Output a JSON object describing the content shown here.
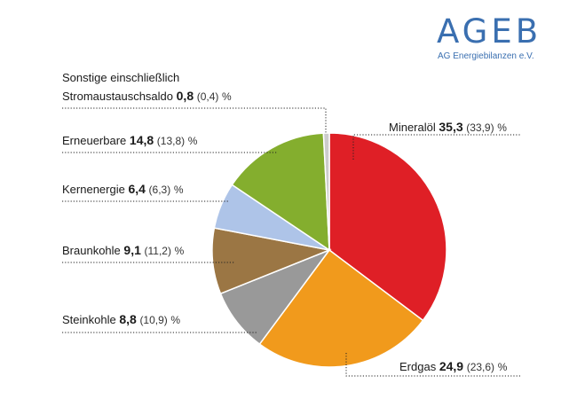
{
  "logo": {
    "name": "AGEB",
    "subtitle": "AG Energiebilanzen e.V."
  },
  "colors": {
    "mineraloel": "#df1f26",
    "erdgas": "#f19a1c",
    "steinkohle": "#999999",
    "braunkohle": "#9b7644",
    "kernenergie": "#aec4e8",
    "erneuerbare": "#84ae2e",
    "sonstige": "#cccccc"
  },
  "chart_data": {
    "type": "pie",
    "unit": "%",
    "slices": [
      {
        "label": "Mineralöl",
        "value": 35.3,
        "previous": 33.9,
        "value_text": "35,3",
        "previous_text": "(33,9)",
        "color_key": "mineraloel"
      },
      {
        "label": "Erdgas",
        "value": 24.9,
        "previous": 23.6,
        "value_text": "24,9",
        "previous_text": "(23,6)",
        "color_key": "erdgas"
      },
      {
        "label": "Steinkohle",
        "value": 8.8,
        "previous": 10.9,
        "value_text": "8,8",
        "previous_text": "(10,9)",
        "color_key": "steinkohle"
      },
      {
        "label": "Braunkohle",
        "value": 9.1,
        "previous": 11.2,
        "value_text": "9,1",
        "previous_text": "(11,2)",
        "color_key": "braunkohle"
      },
      {
        "label": "Kernenergie",
        "value": 6.4,
        "previous": 6.3,
        "value_text": "6,4",
        "previous_text": "(6,3)",
        "color_key": "kernenergie"
      },
      {
        "label": "Erneuerbare",
        "value": 14.8,
        "previous": 13.8,
        "value_text": "14,8",
        "previous_text": "(13,8)",
        "color_key": "erneuerbare"
      },
      {
        "label_line1": "Sonstige einschließlich",
        "label": "Stromaustauschsaldo",
        "value": 0.8,
        "previous": 0.4,
        "value_text": "0,8",
        "previous_text": "(0,4)",
        "color_key": "sonstige"
      }
    ]
  }
}
